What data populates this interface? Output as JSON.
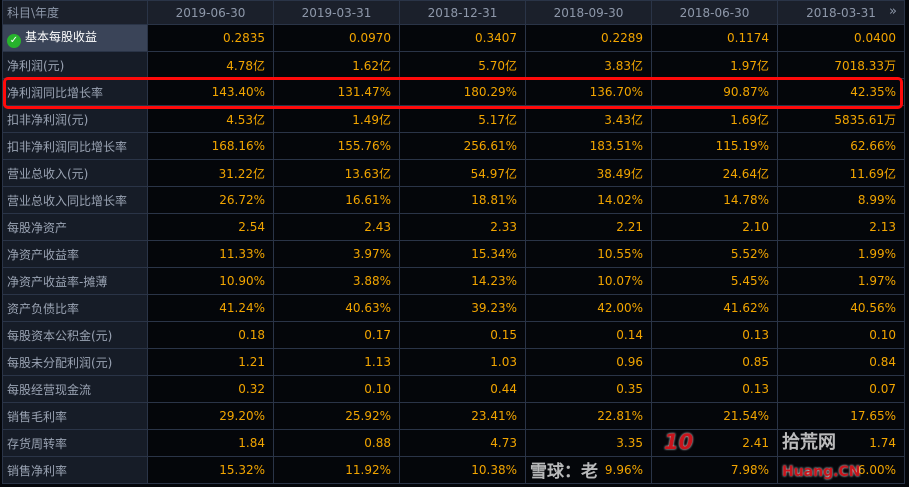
{
  "header": {
    "corner": "科目\\年度",
    "dates": [
      "2019-06-30",
      "2019-03-31",
      "2018-12-31",
      "2018-09-30",
      "2018-06-30",
      "2018-03-31"
    ],
    "more_icon": "double-chevron-right-icon"
  },
  "rows": [
    {
      "label": "基本每股收益",
      "values": [
        "0.2835",
        "0.0970",
        "0.3407",
        "0.2289",
        "0.1174",
        "0.0400"
      ]
    },
    {
      "label": "净利润(元)",
      "values": [
        "4.78亿",
        "1.62亿",
        "5.70亿",
        "3.83亿",
        "1.97亿",
        "7018.33万"
      ]
    },
    {
      "label": "净利润同比增长率",
      "values": [
        "143.40%",
        "131.47%",
        "180.29%",
        "136.70%",
        "90.87%",
        "42.35%"
      ]
    },
    {
      "label": "扣非净利润(元)",
      "values": [
        "4.53亿",
        "1.49亿",
        "5.17亿",
        "3.43亿",
        "1.69亿",
        "5835.61万"
      ]
    },
    {
      "label": "扣非净利润同比增长率",
      "values": [
        "168.16%",
        "155.76%",
        "256.61%",
        "183.51%",
        "115.19%",
        "62.66%"
      ]
    },
    {
      "label": "营业总收入(元)",
      "values": [
        "31.22亿",
        "13.63亿",
        "54.97亿",
        "38.49亿",
        "24.64亿",
        "11.69亿"
      ]
    },
    {
      "label": "营业总收入同比增长率",
      "values": [
        "26.72%",
        "16.61%",
        "18.81%",
        "14.02%",
        "14.78%",
        "8.99%"
      ]
    },
    {
      "label": "每股净资产",
      "values": [
        "2.54",
        "2.43",
        "2.33",
        "2.21",
        "2.10",
        "2.13"
      ]
    },
    {
      "label": "净资产收益率",
      "values": [
        "11.33%",
        "3.97%",
        "15.34%",
        "10.55%",
        "5.52%",
        "1.99%"
      ]
    },
    {
      "label": "净资产收益率-摊薄",
      "values": [
        "10.90%",
        "3.88%",
        "14.23%",
        "10.07%",
        "5.45%",
        "1.97%"
      ]
    },
    {
      "label": "资产负债比率",
      "values": [
        "41.24%",
        "40.63%",
        "39.23%",
        "42.00%",
        "41.62%",
        "40.56%"
      ]
    },
    {
      "label": "每股资本公积金(元)",
      "values": [
        "0.18",
        "0.17",
        "0.15",
        "0.14",
        "0.13",
        "0.10"
      ]
    },
    {
      "label": "每股未分配利润(元)",
      "values": [
        "1.21",
        "1.13",
        "1.03",
        "0.96",
        "0.85",
        "0.84"
      ]
    },
    {
      "label": "每股经营现金流",
      "values": [
        "0.32",
        "0.10",
        "0.44",
        "0.35",
        "0.13",
        "0.07"
      ]
    },
    {
      "label": "销售毛利率",
      "values": [
        "29.20%",
        "25.92%",
        "23.41%",
        "22.81%",
        "21.54%",
        "17.65%"
      ]
    },
    {
      "label": "存货周转率",
      "values": [
        "1.84",
        "0.88",
        "4.73",
        "3.35",
        "2.41",
        "1.74"
      ]
    },
    {
      "label": "销售净利率",
      "values": [
        "15.32%",
        "11.92%",
        "10.38%",
        "9.96%",
        "7.98%",
        "6.00%"
      ]
    }
  ],
  "watermark": {
    "text1": "雪球：老",
    "text2": "10",
    "text3": "拾荒网",
    "text4": "Huang.CN"
  }
}
